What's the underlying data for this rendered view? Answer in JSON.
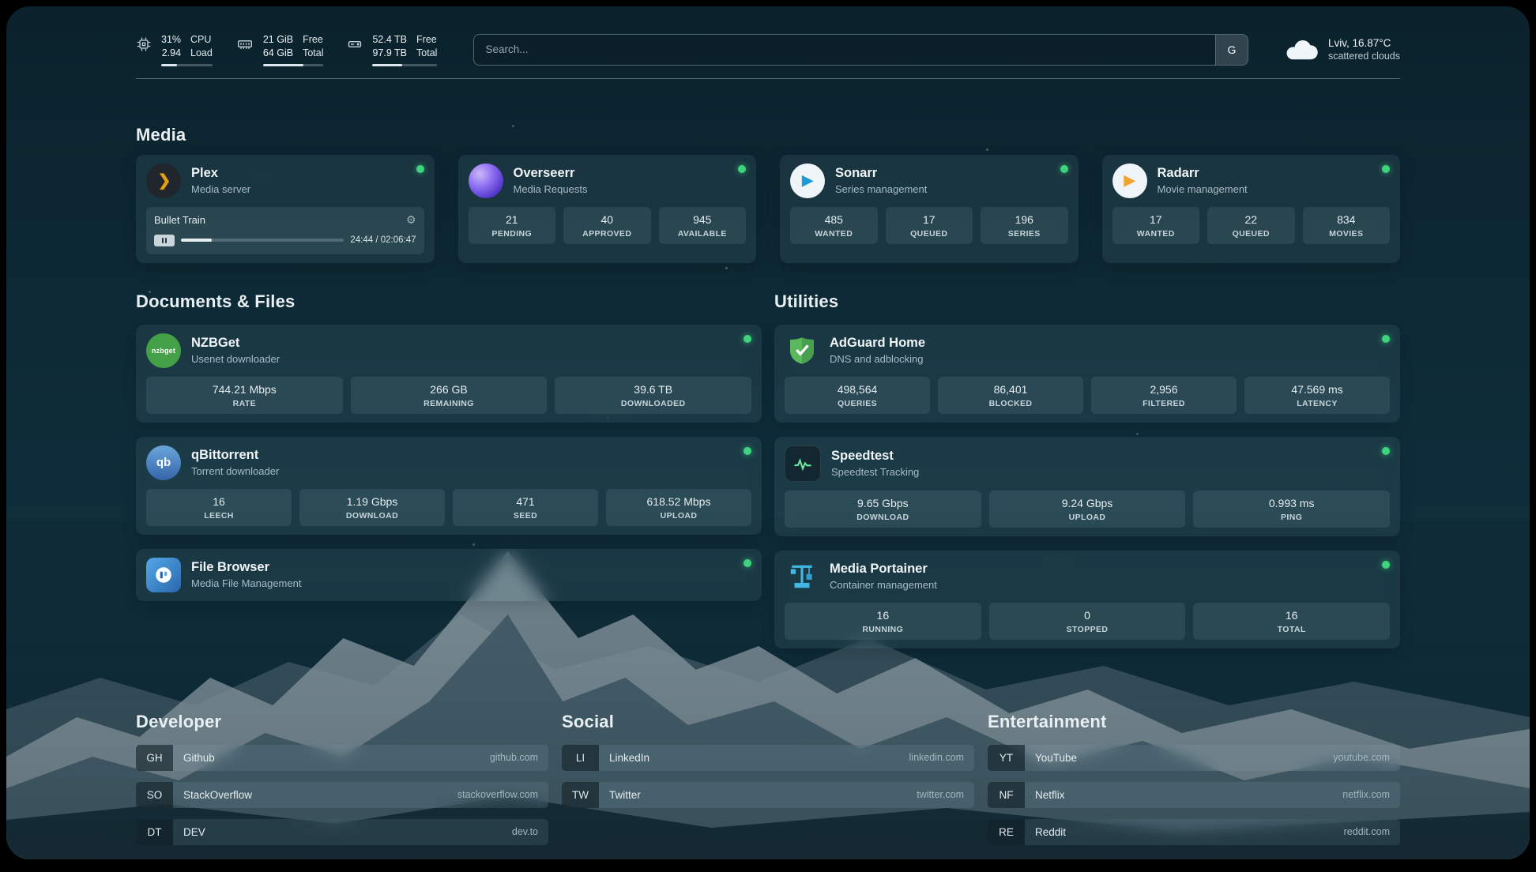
{
  "colors": {
    "status_online": "#3ed47e",
    "accent_plex": "#e5a00d"
  },
  "icons": {
    "plex_glyph": "❯",
    "play_glyph": "▶",
    "gear_glyph": "⚙",
    "nzbget_glyph": "nzbget",
    "qbittorrent_glyph": "qb"
  },
  "header": {
    "cpu": {
      "value": "31%",
      "load": "2.94",
      "label_top": "CPU",
      "label_bottom": "Load",
      "bar": 31
    },
    "memory": {
      "free": "21 GiB",
      "total": "64 GiB",
      "label_top": "Free",
      "label_bottom": "Total",
      "bar": 67
    },
    "disk": {
      "free": "52.4 TB",
      "total": "97.9 TB",
      "label_top": "Free",
      "label_bottom": "Total",
      "bar": 46
    },
    "search": {
      "placeholder": "Search...",
      "button": "G"
    },
    "weather": {
      "location": "Lviv, 16.87°C",
      "condition": "scattered clouds"
    }
  },
  "sections": {
    "media": {
      "title": "Media",
      "cards": [
        {
          "name": "Plex",
          "desc": "Media server",
          "status": "online",
          "player": {
            "title": "Bullet Train",
            "time": "24:44 / 02:06:47",
            "progress": 19
          }
        },
        {
          "name": "Overseerr",
          "desc": "Media Requests",
          "status": "online",
          "stats": [
            {
              "value": "21",
              "label": "PENDING"
            },
            {
              "value": "40",
              "label": "APPROVED"
            },
            {
              "value": "945",
              "label": "AVAILABLE"
            }
          ]
        },
        {
          "name": "Sonarr",
          "desc": "Series management",
          "status": "online",
          "stats": [
            {
              "value": "485",
              "label": "WANTED"
            },
            {
              "value": "17",
              "label": "QUEUED"
            },
            {
              "value": "196",
              "label": "SERIES"
            }
          ]
        },
        {
          "name": "Radarr",
          "desc": "Movie management",
          "status": "online",
          "stats": [
            {
              "value": "17",
              "label": "WANTED"
            },
            {
              "value": "22",
              "label": "QUEUED"
            },
            {
              "value": "834",
              "label": "MOVIES"
            }
          ]
        }
      ]
    },
    "documents": {
      "title": "Documents & Files",
      "cards": [
        {
          "name": "NZBGet",
          "desc": "Usenet downloader",
          "status": "online",
          "stats": [
            {
              "value": "744.21 Mbps",
              "label": "RATE"
            },
            {
              "value": "266 GB",
              "label": "REMAINING"
            },
            {
              "value": "39.6 TB",
              "label": "DOWNLOADED"
            }
          ]
        },
        {
          "name": "qBittorrent",
          "desc": "Torrent downloader",
          "status": "online",
          "stats": [
            {
              "value": "16",
              "label": "LEECH"
            },
            {
              "value": "1.19 Gbps",
              "label": "DOWNLOAD"
            },
            {
              "value": "471",
              "label": "SEED"
            },
            {
              "value": "618.52 Mbps",
              "label": "UPLOAD"
            }
          ]
        },
        {
          "name": "File Browser",
          "desc": "Media File Management",
          "status": "online",
          "stats": []
        }
      ]
    },
    "utilities": {
      "title": "Utilities",
      "cards": [
        {
          "name": "AdGuard Home",
          "desc": "DNS and adblocking",
          "status": "online",
          "stats": [
            {
              "value": "498,564",
              "label": "QUERIES"
            },
            {
              "value": "86,401",
              "label": "BLOCKED"
            },
            {
              "value": "2,956",
              "label": "FILTERED"
            },
            {
              "value": "47.569 ms",
              "label": "LATENCY"
            }
          ]
        },
        {
          "name": "Speedtest",
          "desc": "Speedtest Tracking",
          "status": "online",
          "stats": [
            {
              "value": "9.65 Gbps",
              "label": "DOWNLOAD"
            },
            {
              "value": "9.24 Gbps",
              "label": "UPLOAD"
            },
            {
              "value": "0.993 ms",
              "label": "PING"
            }
          ]
        },
        {
          "name": "Media Portainer",
          "desc": "Container management",
          "status": "online",
          "stats": [
            {
              "value": "16",
              "label": "RUNNING"
            },
            {
              "value": "0",
              "label": "STOPPED"
            },
            {
              "value": "16",
              "label": "TOTAL"
            }
          ]
        }
      ]
    },
    "bookmarks": [
      {
        "title": "Developer",
        "items": [
          {
            "abbr": "GH",
            "name": "Github",
            "domain": "github.com"
          },
          {
            "abbr": "SO",
            "name": "StackOverflow",
            "domain": "stackoverflow.com"
          },
          {
            "abbr": "DT",
            "name": "DEV",
            "domain": "dev.to"
          }
        ]
      },
      {
        "title": "Social",
        "items": [
          {
            "abbr": "LI",
            "name": "LinkedIn",
            "domain": "linkedin.com"
          },
          {
            "abbr": "TW",
            "name": "Twitter",
            "domain": "twitter.com"
          }
        ]
      },
      {
        "title": "Entertainment",
        "items": [
          {
            "abbr": "YT",
            "name": "YouTube",
            "domain": "youtube.com"
          },
          {
            "abbr": "NF",
            "name": "Netflix",
            "domain": "netflix.com"
          },
          {
            "abbr": "RE",
            "name": "Reddit",
            "domain": "reddit.com"
          }
        ]
      }
    ]
  }
}
